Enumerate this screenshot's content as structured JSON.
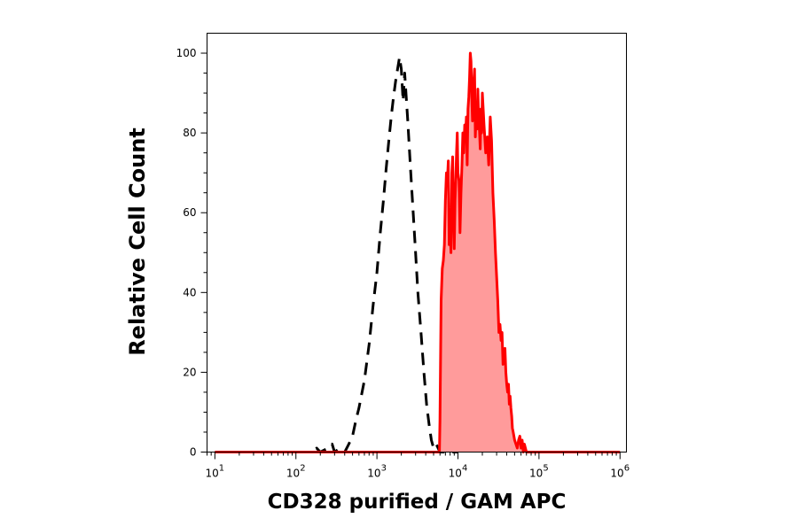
{
  "chart_data": {
    "type": "area",
    "title": "",
    "xlabel": "CD328 purified / GAM APC",
    "ylabel": "Relative Cell Count",
    "xscale": "log",
    "xlim": [
      8,
      1200000
    ],
    "ylim": [
      0,
      105
    ],
    "grid": false,
    "legend": "none",
    "yticks": [
      {
        "value": 0,
        "label": "0"
      },
      {
        "value": 20,
        "label": "20"
      },
      {
        "value": 40,
        "label": "40"
      },
      {
        "value": 60,
        "label": "60"
      },
      {
        "value": 80,
        "label": "80"
      },
      {
        "value": 100,
        "label": "100"
      }
    ],
    "xticks": [
      {
        "value": 10,
        "base": "10",
        "exp": "1"
      },
      {
        "value": 100,
        "base": "10",
        "exp": "2"
      },
      {
        "value": 1000,
        "base": "10",
        "exp": "3"
      },
      {
        "value": 10000,
        "base": "10",
        "exp": "4"
      },
      {
        "value": 100000,
        "base": "10",
        "exp": "5"
      },
      {
        "value": 1000000,
        "base": "10",
        "exp": "6"
      }
    ],
    "series": [
      {
        "style": "dashed",
        "color": "#000000",
        "fill": "none",
        "x": [
          10,
          150,
          180,
          200,
          250,
          280,
          300,
          350,
          400,
          450,
          500,
          550,
          600,
          700,
          800,
          900,
          1000,
          1100,
          1200,
          1300,
          1400,
          1500,
          1600,
          1700,
          1800,
          1900,
          2000,
          2100,
          2200,
          2400,
          2600,
          2800,
          3000,
          3200,
          3500,
          3800,
          4100,
          4400,
          4700,
          5000,
          5400,
          6000,
          7000,
          10000
        ],
        "y": [
          0,
          0,
          1,
          0,
          1,
          2,
          0,
          1,
          0,
          2,
          4,
          8,
          11,
          18,
          27,
          37,
          45,
          55,
          63,
          71,
          78,
          84,
          89,
          93,
          96,
          99,
          96,
          88,
          95,
          83,
          71,
          60,
          50,
          40,
          30,
          20,
          12,
          7,
          3,
          1,
          2,
          0,
          0,
          0
        ]
      },
      {
        "style": "solid",
        "color": "#ff0000",
        "fill": "#ff9b9b",
        "x": [
          10,
          5900,
          6000,
          6200,
          6400,
          6600,
          6800,
          7000,
          7200,
          7400,
          7600,
          7800,
          8000,
          8200,
          8400,
          8600,
          8800,
          9000,
          9200,
          9400,
          9600,
          9800,
          10000,
          10300,
          10600,
          10900,
          11200,
          11500,
          11800,
          12100,
          12400,
          12700,
          13000,
          13300,
          13600,
          13900,
          14200,
          14500,
          14800,
          15100,
          15400,
          15700,
          16000,
          16400,
          16800,
          17200,
          17600,
          18000,
          18400,
          18800,
          19200,
          19600,
          20000,
          21000,
          22000,
          23000,
          24000,
          25000,
          26000,
          27000,
          28000,
          29000,
          30000,
          31000,
          32000,
          33000,
          34000,
          35000,
          36000,
          37000,
          38000,
          39000,
          40000,
          41000,
          42000,
          43000,
          44000,
          45000,
          46000,
          47000,
          48000,
          49000,
          50000,
          52000,
          54000,
          56000,
          58000,
          60000,
          62000,
          64000,
          66000,
          70000,
          1000000
        ],
        "y": [
          0,
          0,
          8,
          38,
          46,
          48,
          52,
          63,
          70,
          68,
          73,
          52,
          56,
          50,
          70,
          74,
          60,
          51,
          63,
          68,
          75,
          80,
          70,
          68,
          55,
          65,
          72,
          80,
          75,
          82,
          79,
          84,
          72,
          86,
          89,
          94,
          100,
          98,
          89,
          83,
          87,
          93,
          96,
          79,
          86,
          81,
          91,
          84,
          81,
          76,
          86,
          80,
          90,
          82,
          75,
          79,
          72,
          84,
          78,
          65,
          58,
          50,
          44,
          38,
          30,
          32,
          28,
          30,
          22,
          24,
          26,
          20,
          17,
          15,
          17,
          12,
          14,
          11,
          9,
          6,
          5,
          4,
          3,
          2,
          1,
          3,
          4,
          1,
          3,
          0,
          2,
          0,
          0
        ]
      }
    ]
  }
}
